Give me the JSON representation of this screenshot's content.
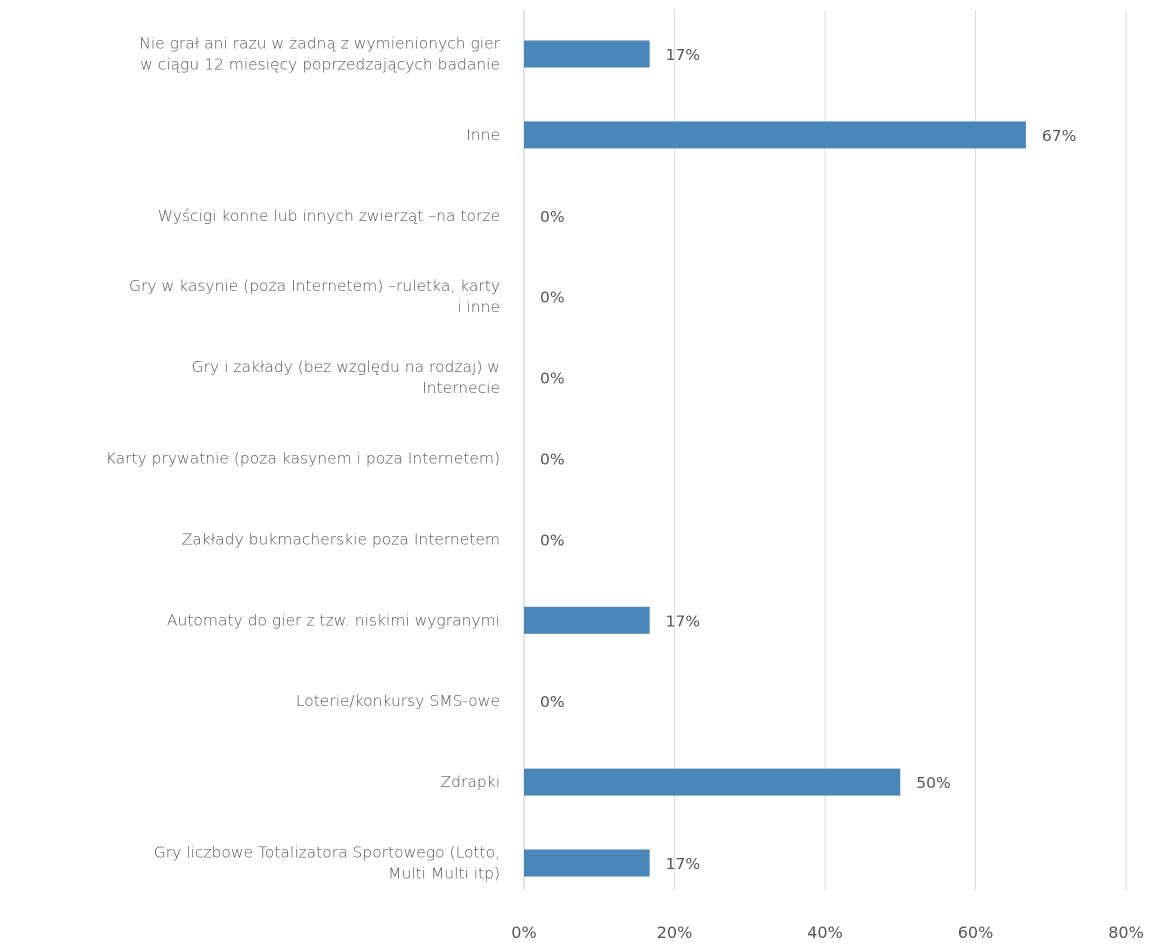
{
  "chart_data": {
    "type": "bar",
    "orientation": "horizontal",
    "categories": [
      "Nie grał ani razu w żadną z wymienionych gier w ciągu 12 miesięcy poprzedzających badanie",
      "Inne",
      "Wyścigi konne lub innych zwierząt –na torze",
      "Gry w kasynie (poza Internetem) –ruletka, karty i inne",
      "Gry i zakłady (bez względu na rodzaj) w Internecie",
      "Karty prywatnie (poza kasynem i poza Internetem)",
      "Zakłady bukmacherskie poza Internetem",
      "Automaty do gier z tzw. niskimi wygranymi",
      "Loterie/konkursy SMS-owe",
      "Zdrapki",
      "Gry liczbowe Totalizatora Sportowego (Lotto, Multi Multi itp)"
    ],
    "category_lines": [
      [
        "Nie grał ani razu w żadną z wymienionych gier",
        "w ciągu 12 miesięcy poprzedzających badanie"
      ],
      [
        "Inne"
      ],
      [
        "Wyścigi konne lub innych zwierząt –na torze"
      ],
      [
        "Gry w kasynie (poza Internetem) –ruletka, karty",
        "i inne"
      ],
      [
        "Gry i zakłady (bez względu na rodzaj) w",
        "Internecie"
      ],
      [
        "Karty prywatnie (poza kasynem i poza Internetem)"
      ],
      [
        "Zakłady bukmacherskie poza Internetem"
      ],
      [
        "Automaty do gier z tzw. niskimi wygranymi"
      ],
      [
        "Loterie/konkursy SMS-owe"
      ],
      [
        "Zdrapki"
      ],
      [
        "Gry liczbowe Totalizatora Sportowego (Lotto,",
        "Multi Multi itp)"
      ]
    ],
    "values": [
      16.7,
      66.7,
      0,
      0,
      0,
      0,
      0,
      16.7,
      0,
      50,
      16.7
    ],
    "data_labels": [
      "17%",
      "67%",
      "0%",
      "0%",
      "0%",
      "0%",
      "0%",
      "17%",
      "0%",
      "50%",
      "17%"
    ],
    "xlim": [
      0,
      80
    ],
    "xticks": [
      0,
      20,
      40,
      60,
      80
    ],
    "xtick_labels": [
      "0%",
      "20%",
      "40%",
      "60%",
      "80%"
    ],
    "grid": true,
    "legend": "none",
    "bar_color": "#4a86b8"
  }
}
